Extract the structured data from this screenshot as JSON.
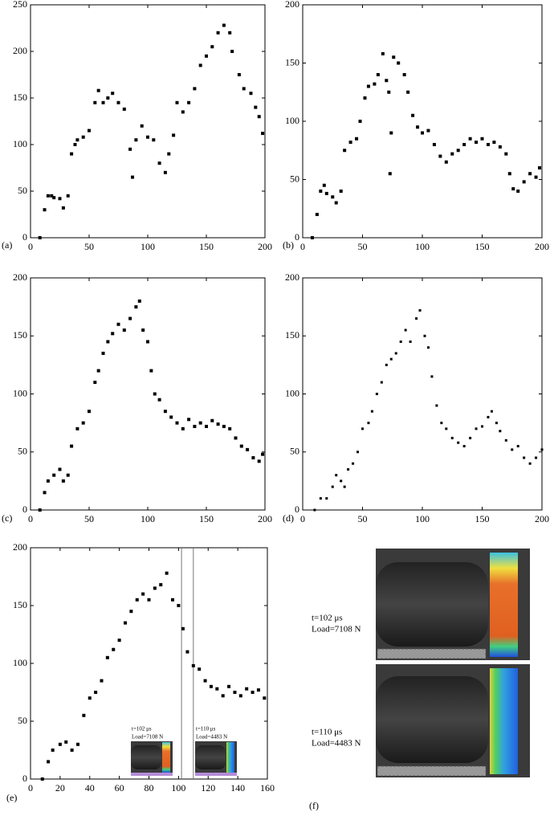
{
  "chart_data": [
    {
      "type": "scatter",
      "label": "(a)",
      "color": "#000000",
      "x": [
        8,
        12,
        15,
        18,
        20,
        25,
        28,
        32,
        35,
        38,
        40,
        45,
        50,
        55,
        58,
        62,
        66,
        70,
        75,
        80,
        85,
        87,
        90,
        95,
        100,
        105,
        110,
        115,
        118,
        122,
        125,
        130,
        135,
        140,
        145,
        150,
        155,
        160,
        165,
        170,
        172,
        178,
        182,
        188,
        192,
        195,
        198
      ],
      "values": [
        0,
        30,
        45,
        45,
        43,
        42,
        32,
        45,
        90,
        100,
        105,
        108,
        115,
        145,
        158,
        145,
        150,
        155,
        145,
        138,
        95,
        65,
        105,
        120,
        108,
        105,
        80,
        70,
        90,
        110,
        145,
        135,
        145,
        160,
        185,
        195,
        205,
        220,
        228,
        220,
        200,
        175,
        160,
        155,
        140,
        130,
        112
      ],
      "xlim": [
        0,
        200
      ],
      "ylim": [
        0,
        250
      ],
      "xticks": [
        0,
        50,
        100,
        150,
        200
      ],
      "yticks": [
        0,
        50,
        100,
        150,
        200,
        250
      ]
    },
    {
      "type": "scatter",
      "label": "(b)",
      "color": "#000000",
      "x": [
        8,
        12,
        15,
        18,
        20,
        25,
        28,
        32,
        35,
        40,
        45,
        48,
        52,
        55,
        60,
        63,
        67,
        70,
        72,
        73,
        74,
        76,
        80,
        85,
        88,
        92,
        96,
        100,
        105,
        110,
        115,
        120,
        125,
        130,
        135,
        140,
        145,
        150,
        155,
        160,
        165,
        170,
        173,
        176,
        180,
        185,
        190,
        195,
        198
      ],
      "values": [
        0,
        20,
        40,
        45,
        38,
        35,
        30,
        40,
        75,
        82,
        85,
        100,
        120,
        130,
        132,
        140,
        158,
        135,
        125,
        55,
        90,
        155,
        150,
        140,
        125,
        105,
        95,
        90,
        92,
        80,
        70,
        65,
        72,
        75,
        80,
        85,
        82,
        85,
        80,
        82,
        78,
        72,
        55,
        42,
        40,
        48,
        55,
        52,
        60
      ],
      "xlim": [
        0,
        200
      ],
      "ylim": [
        0,
        200
      ],
      "xticks": [
        0,
        50,
        100,
        150,
        200
      ],
      "yticks": [
        0,
        50,
        100,
        150,
        200
      ]
    },
    {
      "type": "scatter",
      "label": "(c)",
      "color": "#000000",
      "x": [
        8,
        12,
        15,
        20,
        25,
        28,
        32,
        35,
        40,
        45,
        50,
        55,
        58,
        62,
        66,
        70,
        75,
        80,
        85,
        90,
        93,
        96,
        100,
        103,
        106,
        110,
        115,
        120,
        125,
        130,
        135,
        140,
        145,
        150,
        155,
        160,
        165,
        170,
        175,
        180,
        185,
        190,
        195,
        198
      ],
      "values": [
        0,
        15,
        25,
        30,
        35,
        25,
        30,
        55,
        70,
        75,
        85,
        110,
        120,
        135,
        145,
        152,
        160,
        155,
        165,
        175,
        180,
        155,
        145,
        120,
        100,
        95,
        85,
        80,
        75,
        70,
        78,
        72,
        75,
        72,
        77,
        74,
        72,
        70,
        62,
        55,
        52,
        45,
        42,
        48
      ],
      "xlim": [
        0,
        200
      ],
      "ylim": [
        0,
        200
      ],
      "xticks": [
        0,
        50,
        100,
        150,
        200
      ],
      "yticks": [
        0,
        50,
        100,
        150,
        200
      ]
    },
    {
      "type": "scatter",
      "label": "(d)",
      "color": "#000000",
      "x": [
        10,
        15,
        20,
        25,
        28,
        32,
        35,
        38,
        42,
        46,
        50,
        55,
        58,
        62,
        66,
        70,
        74,
        78,
        82,
        86,
        90,
        95,
        98,
        102,
        105,
        108,
        112,
        116,
        120,
        125,
        130,
        135,
        140,
        145,
        150,
        155,
        158,
        162,
        165,
        170,
        175,
        180,
        185,
        190,
        195,
        200
      ],
      "values": [
        0,
        10,
        10,
        20,
        30,
        25,
        20,
        35,
        40,
        50,
        70,
        75,
        85,
        100,
        110,
        125,
        130,
        135,
        145,
        155,
        145,
        165,
        172,
        150,
        140,
        115,
        90,
        75,
        70,
        62,
        58,
        55,
        62,
        70,
        72,
        80,
        85,
        75,
        68,
        60,
        52,
        55,
        45,
        40,
        45,
        52
      ],
      "xlim": [
        0,
        200
      ],
      "ylim": [
        0,
        200
      ],
      "xticks": [
        0,
        50,
        100,
        150,
        200
      ],
      "yticks": [
        0,
        50,
        100,
        150,
        200
      ]
    },
    {
      "type": "scatter",
      "label": "(e)",
      "color": "#000000",
      "x": [
        8,
        12,
        15,
        20,
        24,
        28,
        32,
        36,
        40,
        44,
        48,
        52,
        56,
        60,
        64,
        68,
        72,
        76,
        80,
        84,
        88,
        92,
        96,
        100,
        103,
        106,
        110,
        114,
        118,
        122,
        126,
        130,
        134,
        138,
        142,
        146,
        150,
        154,
        158
      ],
      "values": [
        0,
        15,
        25,
        30,
        32,
        25,
        30,
        55,
        70,
        75,
        85,
        105,
        112,
        120,
        135,
        145,
        155,
        160,
        155,
        165,
        168,
        178,
        155,
        150,
        130,
        110,
        98,
        95,
        85,
        80,
        78,
        72,
        80,
        75,
        72,
        78,
        75,
        77,
        70
      ],
      "xlim": [
        0,
        160
      ],
      "ylim": [
        0,
        200
      ],
      "xticks": [
        0,
        20,
        40,
        60,
        80,
        100,
        120,
        140,
        160
      ],
      "yticks": [
        0,
        50,
        100,
        150,
        200
      ],
      "vlines": [
        102,
        110
      ],
      "annotations": [
        [
          "t=102 μs",
          "Load=7108 N"
        ],
        [
          "t=110 μs",
          "Load=4483 N"
        ]
      ]
    }
  ],
  "figure_f": {
    "label": "(f)",
    "captions": [
      [
        "t=102 μs",
        "Load=7108 N"
      ],
      [
        "t=110 μs",
        "Load=4483 N"
      ]
    ]
  }
}
